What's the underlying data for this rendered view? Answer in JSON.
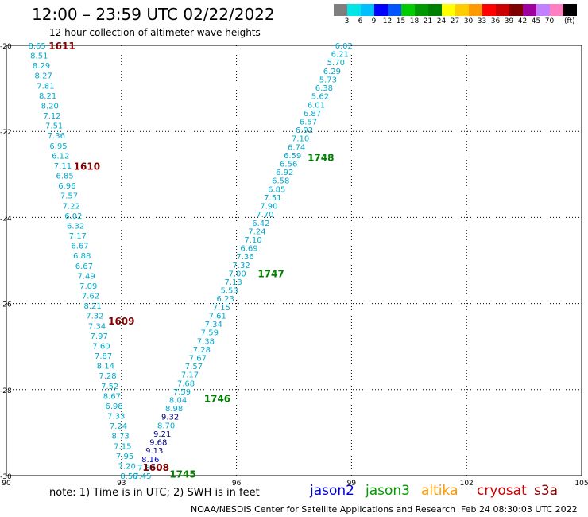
{
  "title": "12:00 – 23:59 UTC 02/22/2022",
  "subtitle": "12 hour collection of altimeter wave heights",
  "legend": {
    "colors": [
      "#7f7f7f",
      "#00e5e5",
      "#00bfff",
      "#0000ff",
      "#0055ff",
      "#00cc00",
      "#009900",
      "#008000",
      "#ffff00",
      "#ffcc00",
      "#ff9900",
      "#ff0000",
      "#cc0000",
      "#800000",
      "#a000a0",
      "#c080ff",
      "#ff80c0",
      "#000000"
    ],
    "ticks": [
      "3",
      "6",
      "9",
      "12",
      "15",
      "18",
      "21",
      "24",
      "27",
      "30",
      "33",
      "36",
      "39",
      "42",
      "45",
      "70"
    ],
    "unit": "(ft)"
  },
  "note": "note: 1) Time is in UTC; 2) SWH is in feet",
  "missions": [
    {
      "name": "jason2",
      "color": "#0000cc"
    },
    {
      "name": "jason3",
      "color": "#009900"
    },
    {
      "name": "altika",
      "color": "#ff9900"
    },
    {
      "name": "cryosat",
      "color": "#cc0000"
    },
    {
      "name": "s3a",
      "color": "#880000"
    }
  ],
  "credit": "NOAA/NESDIS Center for Satellite Applications and Research",
  "timestamp": "Feb 24 08:30:03 UTC 2022",
  "chart_data": {
    "type": "scatter",
    "xlim": [
      90,
      105
    ],
    "ylim": [
      -30,
      -20
    ],
    "xticks": [
      "90",
      "93",
      "96",
      "99",
      "102",
      "105"
    ],
    "yticks": [
      "-20",
      "-22",
      "-24",
      "-26",
      "-28",
      "-30"
    ],
    "grid": true,
    "tracks": [
      {
        "start": [
          90.8,
          -20.0
        ],
        "end": [
          93.2,
          -30.0
        ],
        "values": [
          "8.65",
          "8.51",
          "8.29",
          "8.27",
          "7.81",
          "8.21",
          "8.20",
          "7.12",
          "7.51",
          "7.36",
          "6.95",
          "6.12",
          "7.11",
          "6.85",
          "6.96",
          "7.57",
          "7.22",
          "6.02",
          "6.32",
          "7.17",
          "6.67",
          "6.88",
          "6.67",
          "7.49",
          "7.09",
          "7.62",
          "8.21",
          "7.32",
          "7.34",
          "7.97",
          "7.60",
          "7.87",
          "8.14",
          "7.28",
          "7.52",
          "8.67",
          "6.98",
          "7.33",
          "7.24",
          "8.73",
          "7.15",
          "7.95",
          "7.20",
          "8.58"
        ],
        "colors": [
          "c",
          "c",
          "c",
          "c",
          "c",
          "c",
          "c",
          "c",
          "c",
          "c",
          "c",
          "c",
          "c",
          "c",
          "c",
          "c",
          "c",
          "c",
          "c",
          "c",
          "c",
          "c",
          "c",
          "c",
          "c",
          "c",
          "c",
          "c",
          "c",
          "c",
          "c",
          "c",
          "c",
          "c",
          "c",
          "c",
          "c",
          "c",
          "c",
          "c",
          "c",
          "c",
          "c",
          "c"
        ]
      },
      {
        "start": [
          93.55,
          -30.0
        ],
        "end": [
          98.8,
          -20.0
        ],
        "values": [
          "7.45",
          "7.88",
          "8.16",
          "9.13",
          "9.68",
          "9.21",
          "8.70",
          "9.32",
          "8.98",
          "8.04",
          "7.59",
          "7.68",
          "7.17",
          "7.57",
          "7.67",
          "7.28",
          "7.38",
          "7.59",
          "7.34",
          "7.61",
          "7.15",
          "6.23",
          "5.53",
          "7.13",
          "7.00",
          "7.32",
          "7.36",
          "6.69",
          "7.10",
          "7.24",
          "6.42",
          "7.70",
          "7.90",
          "7.51",
          "6.85",
          "6.58",
          "6.92",
          "6.56",
          "6.59",
          "6.74",
          "7.10",
          "6.92",
          "6.57",
          "6.87",
          "6.01",
          "5.62",
          "6.38",
          "5.73",
          "6.29",
          "5.70",
          "6.21",
          "6.02"
        ],
        "colors": [
          "c",
          "c",
          "b",
          "n",
          "n",
          "n",
          "c",
          "n",
          "c",
          "c",
          "c",
          "c",
          "c",
          "c",
          "c",
          "c",
          "c",
          "c",
          "c",
          "c",
          "c",
          "c",
          "c",
          "c",
          "c",
          "c",
          "c",
          "c",
          "c",
          "c",
          "c",
          "c",
          "c",
          "c",
          "c",
          "c",
          "c",
          "c",
          "c",
          "c",
          "c",
          "c",
          "c",
          "c",
          "c",
          "c",
          "c",
          "c",
          "c",
          "c",
          "c",
          "c"
        ]
      }
    ],
    "time_labels": [
      {
        "text": "1611",
        "x": 91.45,
        "y": -20.0,
        "color": "#800000"
      },
      {
        "text": "1610",
        "x": 92.1,
        "y": -22.8,
        "color": "#800000"
      },
      {
        "text": "1609",
        "x": 93.0,
        "y": -26.4,
        "color": "#800000"
      },
      {
        "text": "1608",
        "x": 93.9,
        "y": -29.8,
        "color": "#800000"
      },
      {
        "text": "1745",
        "x": 94.6,
        "y": -29.95,
        "color": "#008000"
      },
      {
        "text": "1746",
        "x": 95.5,
        "y": -28.2,
        "color": "#008000"
      },
      {
        "text": "1747",
        "x": 96.9,
        "y": -25.3,
        "color": "#008000"
      },
      {
        "text": "1748",
        "x": 98.2,
        "y": -22.6,
        "color": "#008000"
      }
    ]
  }
}
